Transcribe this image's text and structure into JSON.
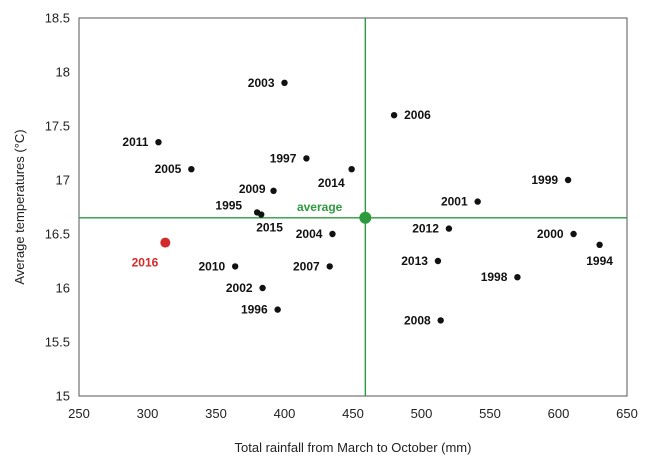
{
  "chart_data": {
    "type": "scatter",
    "xlabel": "Total rainfall from March to October (mm)",
    "ylabel": "Average temperatures (°C)",
    "xlim": [
      250,
      650
    ],
    "ylim": [
      15,
      18.5
    ],
    "x_ticks": [
      "250",
      "300",
      "350",
      "400",
      "450",
      "500",
      "550",
      "600",
      "650"
    ],
    "y_ticks": [
      "15",
      "15.5",
      "16",
      "16.5",
      "17",
      "17.5",
      "18",
      "18.5"
    ],
    "grid": false,
    "colors": {
      "point": "#111111",
      "highlight": "#d42a2a",
      "average": "#2e9a3e",
      "frame": "#555555"
    },
    "points": [
      {
        "label": "1994",
        "x": 630,
        "y": 16.4
      },
      {
        "label": "1995",
        "x": 380,
        "y": 16.7
      },
      {
        "label": "1996",
        "x": 395,
        "y": 15.8
      },
      {
        "label": "1997",
        "x": 416,
        "y": 17.2
      },
      {
        "label": "1998",
        "x": 570,
        "y": 16.1
      },
      {
        "label": "1999",
        "x": 607,
        "y": 17.0
      },
      {
        "label": "2000",
        "x": 611,
        "y": 16.5
      },
      {
        "label": "2001",
        "x": 541,
        "y": 16.8
      },
      {
        "label": "2002",
        "x": 384,
        "y": 16.0
      },
      {
        "label": "2003",
        "x": 400,
        "y": 17.9
      },
      {
        "label": "2004",
        "x": 435,
        "y": 16.5
      },
      {
        "label": "2005",
        "x": 332,
        "y": 17.1
      },
      {
        "label": "2006",
        "x": 480,
        "y": 17.6
      },
      {
        "label": "2007",
        "x": 433,
        "y": 16.2
      },
      {
        "label": "2008",
        "x": 514,
        "y": 15.7
      },
      {
        "label": "2009",
        "x": 392,
        "y": 16.9
      },
      {
        "label": "2010",
        "x": 364,
        "y": 16.2
      },
      {
        "label": "2011",
        "x": 308,
        "y": 17.35
      },
      {
        "label": "2012",
        "x": 520,
        "y": 16.55
      },
      {
        "label": "2013",
        "x": 512,
        "y": 16.25
      },
      {
        "label": "2014",
        "x": 449,
        "y": 17.1
      },
      {
        "label": "2015",
        "x": 383,
        "y": 16.68
      }
    ],
    "highlight": {
      "label": "2016",
      "x": 313,
      "y": 16.42
    },
    "average": {
      "label": "average",
      "x": 459,
      "y": 16.65
    }
  }
}
